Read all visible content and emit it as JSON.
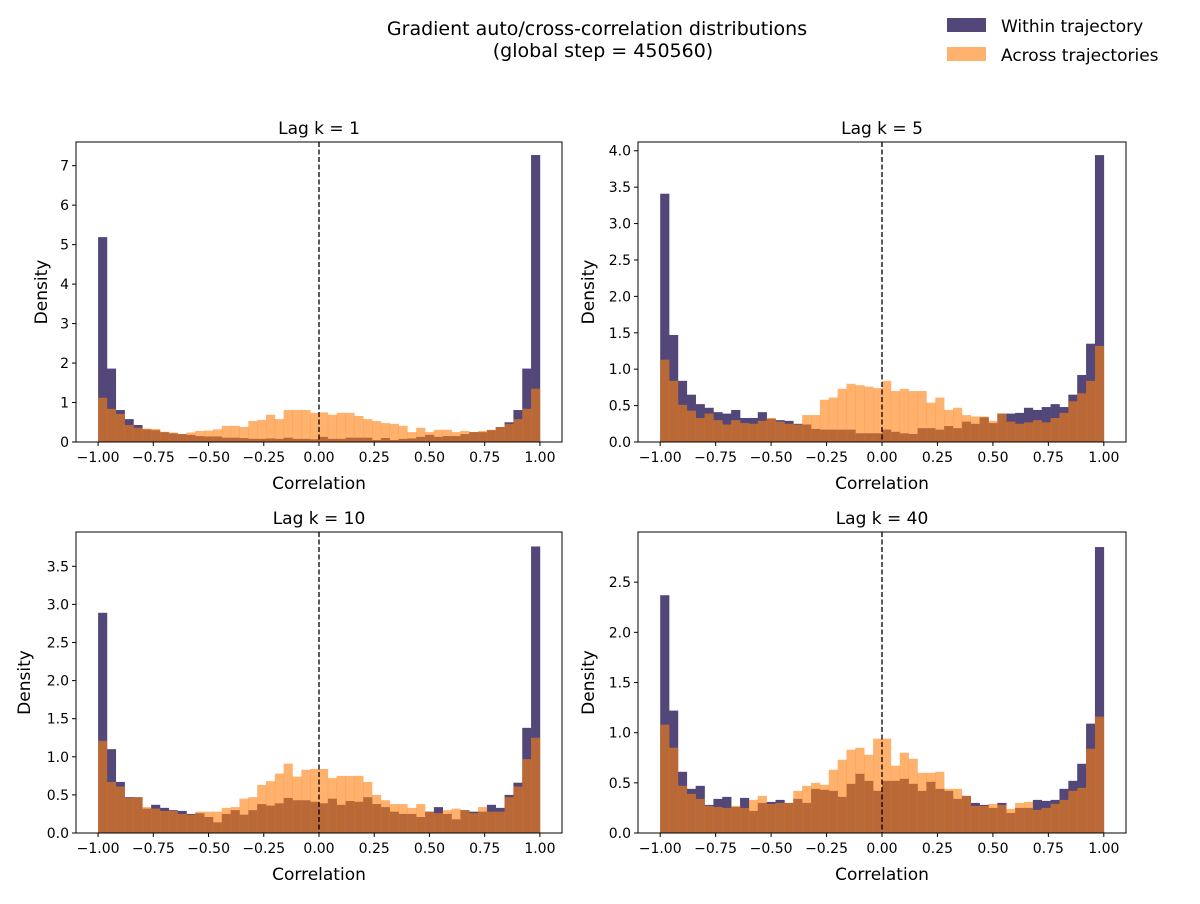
{
  "figure": {
    "title_line1": "Gradient auto/cross-correlation distributions",
    "title_line2": "(global step = 450560)"
  },
  "legend": {
    "placement": "top-right",
    "entries": [
      {
        "label": "Within trajectory",
        "color": "#524778"
      },
      {
        "label": "Across trajectories",
        "color": "#ff7f0e",
        "alpha": 0.6
      }
    ]
  },
  "colors": {
    "within": "#524778",
    "across": "#ff7f0e",
    "zero_line": "#000000"
  },
  "chart_data": [
    {
      "type": "histogram",
      "title": "Lag k = 1",
      "xlabel": "Correlation",
      "ylabel": "Density",
      "xlim": [
        -1.1,
        1.1
      ],
      "ylim": [
        0,
        7.6
      ],
      "bin_range": [
        -1,
        1
      ],
      "bins": 50,
      "xticks": [
        -1,
        -0.75,
        -0.5,
        -0.25,
        0,
        0.25,
        0.5,
        0.75,
        1
      ],
      "xtick_labels": [
        "−1.00",
        "−0.75",
        "−0.50",
        "−0.25",
        "0.00",
        "0.25",
        "0.50",
        "0.75",
        "1.00"
      ],
      "yticks": [
        0,
        1,
        2,
        3,
        4,
        5,
        6,
        7
      ],
      "ytick_labels": [
        "0",
        "1",
        "2",
        "3",
        "4",
        "5",
        "6",
        "7"
      ],
      "vline_x": 0,
      "series": [
        {
          "name": "Within trajectory",
          "values": [
            5.19,
            1.86,
            0.81,
            0.58,
            0.43,
            0.32,
            0.3,
            0.25,
            0.22,
            0.2,
            0.18,
            0.15,
            0.14,
            0.14,
            0.11,
            0.11,
            0.1,
            0.08,
            0.08,
            0.09,
            0.08,
            0.11,
            0.08,
            0.08,
            0.07,
            0.13,
            0.08,
            0.08,
            0.11,
            0.11,
            0.11,
            0.05,
            0.1,
            0.05,
            0.08,
            0.09,
            0.13,
            0.18,
            0.13,
            0.15,
            0.15,
            0.2,
            0.25,
            0.25,
            0.3,
            0.38,
            0.5,
            0.81,
            1.86,
            7.27
          ]
        },
        {
          "name": "Across trajectories",
          "values": [
            1.12,
            0.84,
            0.71,
            0.43,
            0.36,
            0.34,
            0.33,
            0.26,
            0.24,
            0.2,
            0.24,
            0.28,
            0.29,
            0.32,
            0.41,
            0.41,
            0.38,
            0.53,
            0.56,
            0.69,
            0.58,
            0.81,
            0.81,
            0.81,
            0.74,
            0.75,
            0.69,
            0.74,
            0.74,
            0.66,
            0.58,
            0.53,
            0.48,
            0.46,
            0.41,
            0.25,
            0.36,
            0.25,
            0.31,
            0.31,
            0.25,
            0.28,
            0.25,
            0.28,
            0.31,
            0.38,
            0.46,
            0.58,
            0.84,
            1.35
          ]
        }
      ]
    },
    {
      "type": "histogram",
      "title": "Lag k = 5",
      "xlabel": "Correlation",
      "ylabel": "Density",
      "xlim": [
        -1.1,
        1.1
      ],
      "ylim": [
        0,
        4.12
      ],
      "bin_range": [
        -1,
        1
      ],
      "bins": 50,
      "xticks": [
        -1,
        -0.75,
        -0.5,
        -0.25,
        0,
        0.25,
        0.5,
        0.75,
        1
      ],
      "xtick_labels": [
        "−1.00",
        "−0.75",
        "−0.50",
        "−0.25",
        "0.00",
        "0.25",
        "0.50",
        "0.75",
        "1.00"
      ],
      "yticks": [
        0,
        0.5,
        1,
        1.5,
        2,
        2.5,
        3,
        3.5,
        4
      ],
      "ytick_labels": [
        "0.0",
        "0.5",
        "1.0",
        "1.5",
        "2.0",
        "2.5",
        "3.0",
        "3.5",
        "4.0"
      ],
      "vline_x": 0,
      "series": [
        {
          "name": "Within trajectory",
          "values": [
            3.41,
            1.47,
            0.84,
            0.65,
            0.52,
            0.47,
            0.41,
            0.39,
            0.44,
            0.33,
            0.33,
            0.41,
            0.32,
            0.3,
            0.29,
            0.25,
            0.24,
            0.18,
            0.17,
            0.17,
            0.17,
            0.17,
            0.12,
            0.12,
            0.12,
            0.17,
            0.14,
            0.12,
            0.11,
            0.19,
            0.19,
            0.17,
            0.22,
            0.19,
            0.28,
            0.25,
            0.34,
            0.26,
            0.39,
            0.39,
            0.4,
            0.47,
            0.44,
            0.48,
            0.52,
            0.48,
            0.65,
            0.92,
            1.35,
            3.94
          ]
        },
        {
          "name": "Across trajectories",
          "values": [
            1.13,
            0.84,
            0.51,
            0.43,
            0.33,
            0.39,
            0.3,
            0.24,
            0.3,
            0.26,
            0.25,
            0.29,
            0.33,
            0.28,
            0.25,
            0.24,
            0.37,
            0.37,
            0.58,
            0.61,
            0.73,
            0.8,
            0.78,
            0.76,
            0.74,
            0.84,
            0.7,
            0.73,
            0.7,
            0.7,
            0.54,
            0.61,
            0.44,
            0.47,
            0.37,
            0.35,
            0.35,
            0.29,
            0.39,
            0.28,
            0.25,
            0.27,
            0.3,
            0.27,
            0.33,
            0.4,
            0.56,
            0.67,
            0.84,
            1.32
          ]
        }
      ]
    },
    {
      "type": "histogram",
      "title": "Lag k = 10",
      "xlabel": "Correlation",
      "ylabel": "Density",
      "xlim": [
        -1.1,
        1.1
      ],
      "ylim": [
        0,
        3.95
      ],
      "bin_range": [
        -1,
        1
      ],
      "bins": 50,
      "xticks": [
        -1,
        -0.75,
        -0.5,
        -0.25,
        0,
        0.25,
        0.5,
        0.75,
        1
      ],
      "xtick_labels": [
        "−1.00",
        "−0.75",
        "−0.50",
        "−0.25",
        "0.00",
        "0.25",
        "0.50",
        "0.75",
        "1.00"
      ],
      "yticks": [
        0,
        0.5,
        1,
        1.5,
        2,
        2.5,
        3,
        3.5
      ],
      "ytick_labels": [
        "0.0",
        "0.5",
        "1.0",
        "1.5",
        "2.0",
        "2.5",
        "3.0",
        "3.5"
      ],
      "vline_x": 0,
      "series": [
        {
          "name": "Within trajectory",
          "values": [
            2.89,
            1.1,
            0.67,
            0.47,
            0.47,
            0.32,
            0.37,
            0.33,
            0.3,
            0.29,
            0.25,
            0.26,
            0.21,
            0.14,
            0.25,
            0.3,
            0.24,
            0.3,
            0.38,
            0.36,
            0.39,
            0.46,
            0.43,
            0.43,
            0.41,
            0.39,
            0.45,
            0.37,
            0.42,
            0.41,
            0.47,
            0.38,
            0.34,
            0.28,
            0.25,
            0.25,
            0.21,
            0.28,
            0.34,
            0.25,
            0.18,
            0.3,
            0.28,
            0.28,
            0.37,
            0.33,
            0.5,
            0.66,
            1.38,
            3.76
          ]
        },
        {
          "name": "Across trajectories",
          "values": [
            1.21,
            0.67,
            0.61,
            0.46,
            0.47,
            0.34,
            0.32,
            0.29,
            0.29,
            0.25,
            0.24,
            0.28,
            0.28,
            0.28,
            0.33,
            0.34,
            0.45,
            0.47,
            0.63,
            0.68,
            0.78,
            0.91,
            0.74,
            0.83,
            0.84,
            0.84,
            0.72,
            0.75,
            0.75,
            0.75,
            0.67,
            0.5,
            0.43,
            0.38,
            0.38,
            0.33,
            0.38,
            0.28,
            0.26,
            0.3,
            0.32,
            0.3,
            0.26,
            0.34,
            0.28,
            0.28,
            0.47,
            0.61,
            0.97,
            1.25
          ]
        }
      ]
    },
    {
      "type": "histogram",
      "title": "Lag k = 40",
      "xlabel": "Correlation",
      "ylabel": "Density",
      "xlim": [
        -1.1,
        1.1
      ],
      "ylim": [
        0,
        3.0
      ],
      "bin_range": [
        -1,
        1
      ],
      "bins": 50,
      "xticks": [
        -1,
        -0.75,
        -0.5,
        -0.25,
        0,
        0.25,
        0.5,
        0.75,
        1
      ],
      "xtick_labels": [
        "−1.00",
        "−0.75",
        "−0.50",
        "−0.25",
        "0.00",
        "0.25",
        "0.50",
        "0.75",
        "1.00"
      ],
      "yticks": [
        0,
        0.5,
        1,
        1.5,
        2,
        2.5
      ],
      "ytick_labels": [
        "0.0",
        "0.5",
        "1.0",
        "1.5",
        "2.0",
        "2.5"
      ],
      "vline_x": 0,
      "series": [
        {
          "name": "Within trajectory",
          "values": [
            2.37,
            1.22,
            0.61,
            0.44,
            0.47,
            0.28,
            0.34,
            0.36,
            0.26,
            0.35,
            0.22,
            0.3,
            0.31,
            0.33,
            0.3,
            0.34,
            0.3,
            0.44,
            0.43,
            0.42,
            0.36,
            0.49,
            0.59,
            0.52,
            0.42,
            0.52,
            0.52,
            0.54,
            0.49,
            0.42,
            0.51,
            0.44,
            0.42,
            0.34,
            0.37,
            0.3,
            0.28,
            0.25,
            0.3,
            0.2,
            0.25,
            0.25,
            0.33,
            0.32,
            0.33,
            0.44,
            0.52,
            0.69,
            1.09,
            2.85
          ]
        },
        {
          "name": "Across trajectories",
          "values": [
            1.08,
            0.85,
            0.47,
            0.39,
            0.34,
            0.27,
            0.26,
            0.25,
            0.27,
            0.25,
            0.33,
            0.37,
            0.29,
            0.3,
            0.3,
            0.42,
            0.47,
            0.5,
            0.48,
            0.63,
            0.73,
            0.83,
            0.85,
            0.78,
            0.94,
            0.94,
            0.67,
            0.8,
            0.74,
            0.6,
            0.6,
            0.61,
            0.44,
            0.44,
            0.37,
            0.27,
            0.27,
            0.29,
            0.28,
            0.24,
            0.3,
            0.31,
            0.23,
            0.25,
            0.29,
            0.33,
            0.42,
            0.45,
            0.84,
            1.16
          ]
        }
      ]
    }
  ]
}
